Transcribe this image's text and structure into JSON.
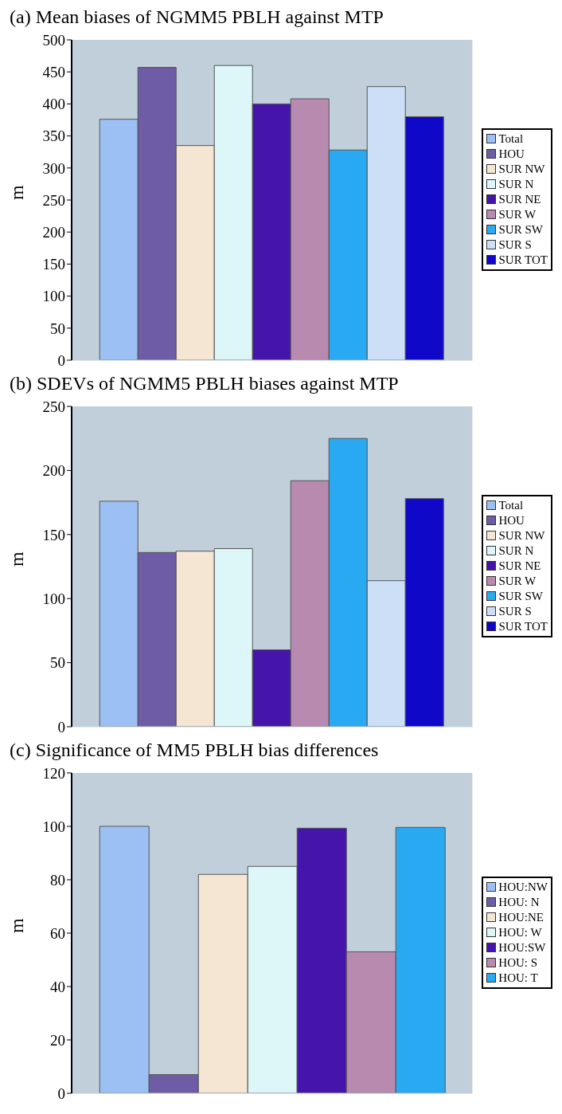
{
  "chart_data": [
    {
      "type": "bar",
      "title": "(a) Mean biases of NGMM5 PBLH against MTP",
      "ylabel": "m",
      "categories": [
        null
      ],
      "ylim": [
        0,
        500
      ],
      "yticks": [
        0,
        50,
        100,
        150,
        200,
        250,
        300,
        350,
        400,
        450,
        500
      ],
      "grid": false,
      "legend": "right",
      "series": [
        {
          "name": "Total",
          "color": "#9dc0f4",
          "values": [
            376
          ]
        },
        {
          "name": "HOU",
          "color": "#6f5ca6",
          "values": [
            457
          ]
        },
        {
          "name": "SUR NW",
          "color": "#f5e6d3",
          "values": [
            335
          ]
        },
        {
          "name": "SUR N",
          "color": "#ddf6f8",
          "values": [
            460
          ]
        },
        {
          "name": "SUR NE",
          "color": "#4515ab",
          "values": [
            400
          ]
        },
        {
          "name": "SUR W",
          "color": "#b98ab0",
          "values": [
            408
          ]
        },
        {
          "name": "SUR SW",
          "color": "#29a9f2",
          "values": [
            328
          ]
        },
        {
          "name": "SUR S",
          "color": "#ccdff7",
          "values": [
            427
          ]
        },
        {
          "name": "SUR TOT",
          "color": "#0f08c9",
          "values": [
            380
          ]
        }
      ]
    },
    {
      "type": "bar",
      "title": "(b) SDEVs of NGMM5 PBLH biases against MTP",
      "ylabel": "m",
      "categories": [
        null
      ],
      "ylim": [
        0,
        250
      ],
      "yticks": [
        0,
        50,
        100,
        150,
        200,
        250
      ],
      "grid": false,
      "legend": "right",
      "series": [
        {
          "name": "Total",
          "color": "#9dc0f4",
          "values": [
            176
          ]
        },
        {
          "name": "HOU",
          "color": "#6f5ca6",
          "values": [
            136
          ]
        },
        {
          "name": "SUR NW",
          "color": "#f5e6d3",
          "values": [
            137
          ]
        },
        {
          "name": "SUR N",
          "color": "#ddf6f8",
          "values": [
            139
          ]
        },
        {
          "name": "SUR NE",
          "color": "#4515ab",
          "values": [
            60
          ]
        },
        {
          "name": "SUR W",
          "color": "#b98ab0",
          "values": [
            192
          ]
        },
        {
          "name": "SUR SW",
          "color": "#29a9f2",
          "values": [
            225
          ]
        },
        {
          "name": "SUR S",
          "color": "#ccdff7",
          "values": [
            114
          ]
        },
        {
          "name": "SUR TOT",
          "color": "#0f08c9",
          "values": [
            178
          ]
        }
      ]
    },
    {
      "type": "bar",
      "title": "(c)  Significance of MM5 PBLH bias differences",
      "ylabel": "m",
      "categories": [
        null
      ],
      "ylim": [
        0,
        120
      ],
      "yticks": [
        0,
        20,
        40,
        60,
        80,
        100,
        120
      ],
      "grid": false,
      "legend": "right",
      "series": [
        {
          "name": "HOU:NW",
          "color": "#9dc0f4",
          "values": [
            100
          ]
        },
        {
          "name": "HOU: N",
          "color": "#6f5ca6",
          "values": [
            7
          ]
        },
        {
          "name": "HOU:NE",
          "color": "#f5e6d3",
          "values": [
            82
          ]
        },
        {
          "name": "HOU: W",
          "color": "#ddf6f8",
          "values": [
            85
          ]
        },
        {
          "name": "HOU:SW",
          "color": "#4515ab",
          "values": [
            99.3
          ]
        },
        {
          "name": "HOU: S",
          "color": "#b98ab0",
          "values": [
            53
          ]
        },
        {
          "name": "HOU: T",
          "color": "#29a9f2",
          "values": [
            99.6
          ]
        }
      ]
    }
  ]
}
